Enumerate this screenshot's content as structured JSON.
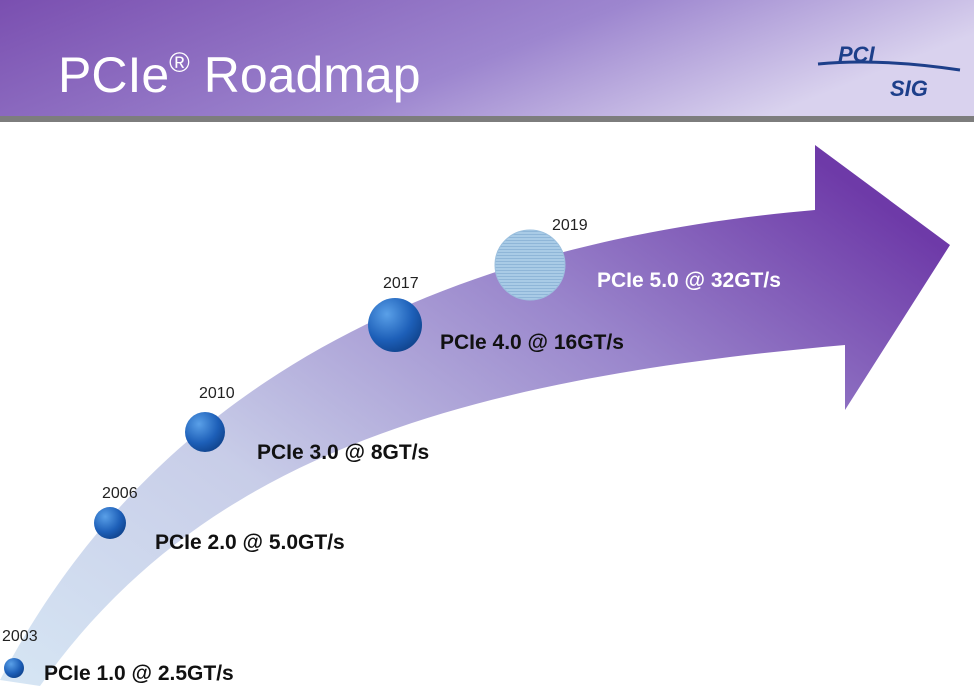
{
  "header": {
    "title": {
      "brand": "PCIe",
      "mark": "®",
      "text": "Roadmap"
    },
    "logo": {
      "top": "PCI",
      "bottom": "SIG"
    }
  },
  "milestones": [
    {
      "year": "2003",
      "label": "PCIe 1.0 @ 2.5GT/s"
    },
    {
      "year": "2006",
      "label": "PCIe 2.0 @ 5.0GT/s"
    },
    {
      "year": "2010",
      "label": "PCIe 3.0 @ 8GT/s"
    },
    {
      "year": "2017",
      "label": "PCIe 4.0 @ 16GT/s"
    },
    {
      "year": "2019",
      "label": "PCIe 5.0 @ 32GT/s"
    }
  ]
}
